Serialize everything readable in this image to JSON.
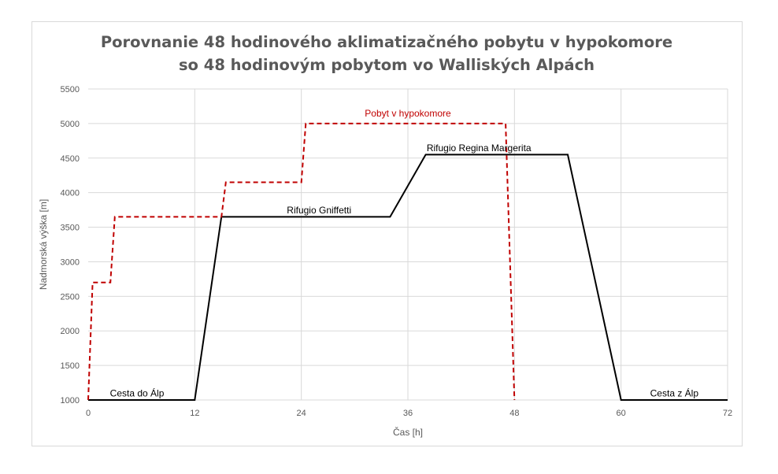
{
  "chart_data": {
    "type": "line",
    "title": [
      "Porovnanie 48 hodinového aklimatizačného pobytu v hypokomore",
      "so 48 hodinovým pobytom vo Walliských Alpách"
    ],
    "xlabel": "Čas [h]",
    "ylabel": "Nadmorská výška [m]",
    "xlim": [
      0,
      72
    ],
    "ylim": [
      1000,
      5500
    ],
    "xticks": [
      0,
      12,
      24,
      36,
      48,
      60,
      72
    ],
    "yticks": [
      1000,
      1500,
      2000,
      2500,
      3000,
      3500,
      4000,
      4500,
      5000,
      5500
    ],
    "grid": true,
    "colors": {
      "alps": "#000000",
      "chamber": "#c00000",
      "grid": "#d9d9d9",
      "text": "#595959"
    },
    "series": [
      {
        "style": "solid",
        "x": [
          0,
          12,
          15,
          34,
          38,
          54,
          60,
          72
        ],
        "y": [
          1000,
          1000,
          3650,
          3650,
          4550,
          4550,
          1000,
          1000
        ]
      },
      {
        "style": "dashed",
        "x": [
          0,
          0.5,
          2.5,
          3,
          15,
          15.5,
          24,
          24.5,
          47,
          48
        ],
        "y": [
          1000,
          2700,
          2700,
          3650,
          3650,
          4150,
          4150,
          5000,
          5000,
          1000
        ]
      }
    ],
    "annotations": [
      {
        "text": "Cesta do Álp",
        "x": 5.5,
        "y": 1050,
        "color": "#000000"
      },
      {
        "text": "Rifugio Gniffetti",
        "x": 26,
        "y": 3700,
        "color": "#000000"
      },
      {
        "text": "Rifugio Regina Margerita",
        "x": 44,
        "y": 4600,
        "color": "#000000"
      },
      {
        "text": "Cesta z Álp",
        "x": 66,
        "y": 1050,
        "color": "#000000"
      },
      {
        "text": "Pobyt v hypokomore",
        "x": 36,
        "y": 5100,
        "color": "#c00000"
      }
    ]
  }
}
